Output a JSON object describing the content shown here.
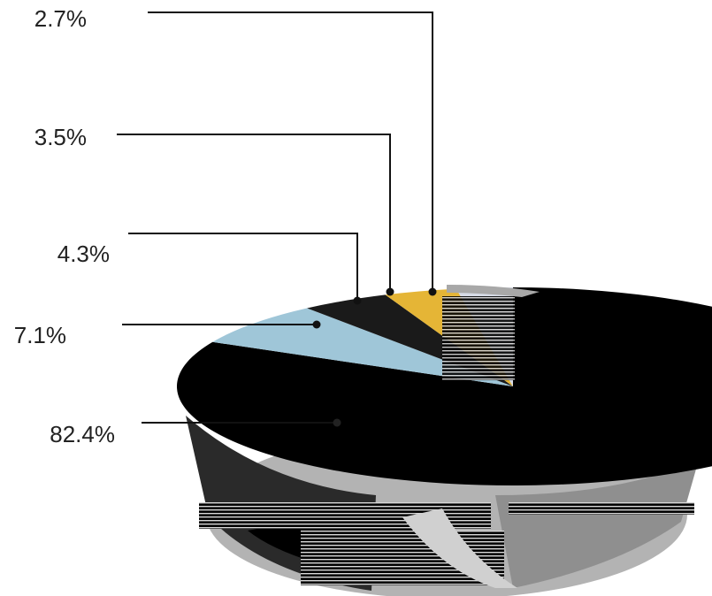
{
  "chart_data": {
    "type": "pie",
    "categories": [
      "",
      "",
      "",
      "",
      ""
    ],
    "values": [
      82.4,
      7.1,
      4.3,
      3.5,
      2.7
    ],
    "labels": [
      "82.4%",
      "7.1%",
      "4.3%",
      "3.5%",
      "2.7%"
    ],
    "title": "",
    "legend": "none",
    "colors": [
      "#000000",
      "#9fc6d8",
      "#1a1a1a",
      "#e5b536",
      "#d6dbe6"
    ],
    "shadow_colors": [
      "#9c9c9c",
      "#c8c8c8",
      "#5a5a5a"
    ],
    "label_color": "#222222",
    "leader_color": "#111111"
  }
}
